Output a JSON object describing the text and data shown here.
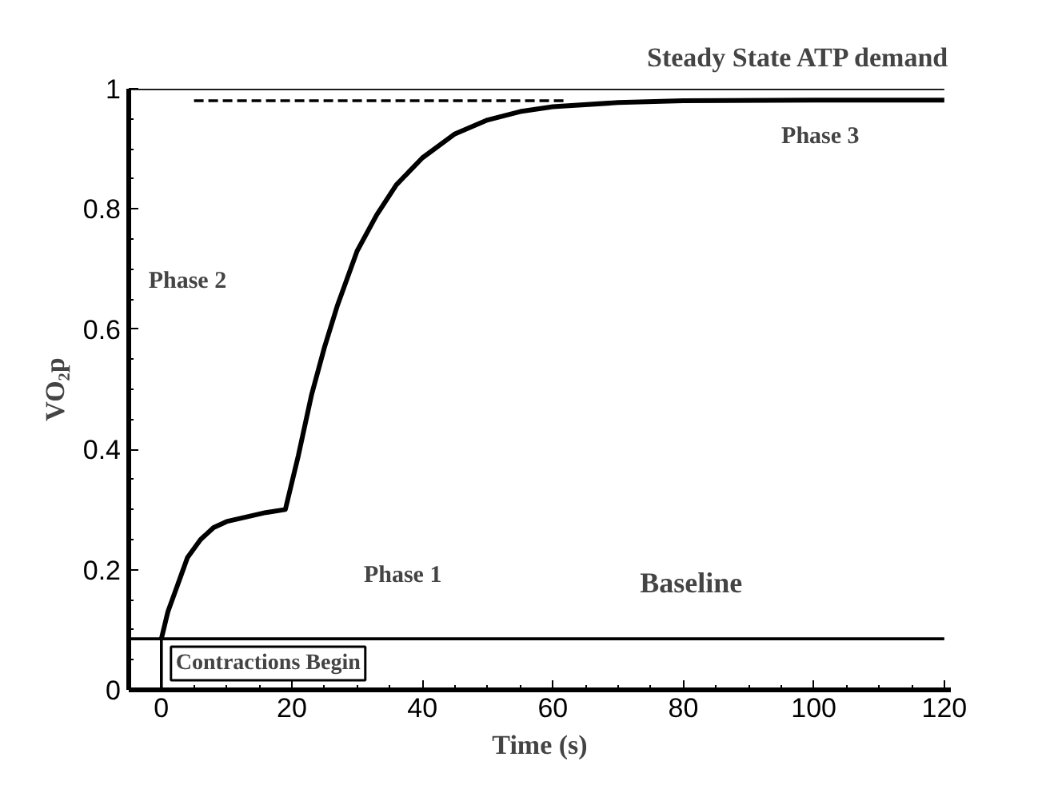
{
  "chart_data": {
    "type": "line",
    "xlabel": "Time (s)",
    "ylabel": "VO₂p",
    "x": [
      0,
      1,
      2,
      3,
      4,
      6,
      8,
      10,
      12,
      14,
      16,
      19,
      21,
      23,
      25,
      27,
      30,
      33,
      36,
      40,
      45,
      50,
      55,
      60,
      70,
      80,
      100,
      120
    ],
    "series": [
      {
        "color": "#000000",
        "values": [
          0.085,
          0.13,
          0.16,
          0.19,
          0.22,
          0.25,
          0.27,
          0.28,
          0.285,
          0.29,
          0.295,
          0.3,
          0.39,
          0.49,
          0.57,
          0.64,
          0.73,
          0.79,
          0.84,
          0.885,
          0.925,
          0.948,
          0.962,
          0.97,
          0.977,
          0.98,
          0.981,
          0.981
        ]
      },
      {
        "color": "#000000",
        "x": [
          5,
          62
        ],
        "values": [
          0.98,
          0.98
        ],
        "line_style": "dashed"
      }
    ],
    "xlim": [
      -5,
      121
    ],
    "ylim": [
      0,
      1.0
    ],
    "xticks": [
      0,
      20,
      40,
      60,
      80,
      100,
      120
    ],
    "yticks": [
      0,
      0.2,
      0.4,
      0.6,
      0.8,
      1
    ],
    "ref_lines": [
      {
        "axis": "y",
        "value": 1,
        "label": "Steady State ATP demand"
      },
      {
        "axis": "y",
        "value": 0.085,
        "label": "Baseline"
      },
      {
        "axis": "x",
        "value": 0,
        "label": "Contractions Begin"
      }
    ],
    "annotations": [
      "Phase 2",
      "Phase 1",
      "Phase 3"
    ],
    "grid": false,
    "marker": "none",
    "line_style": "solid"
  }
}
